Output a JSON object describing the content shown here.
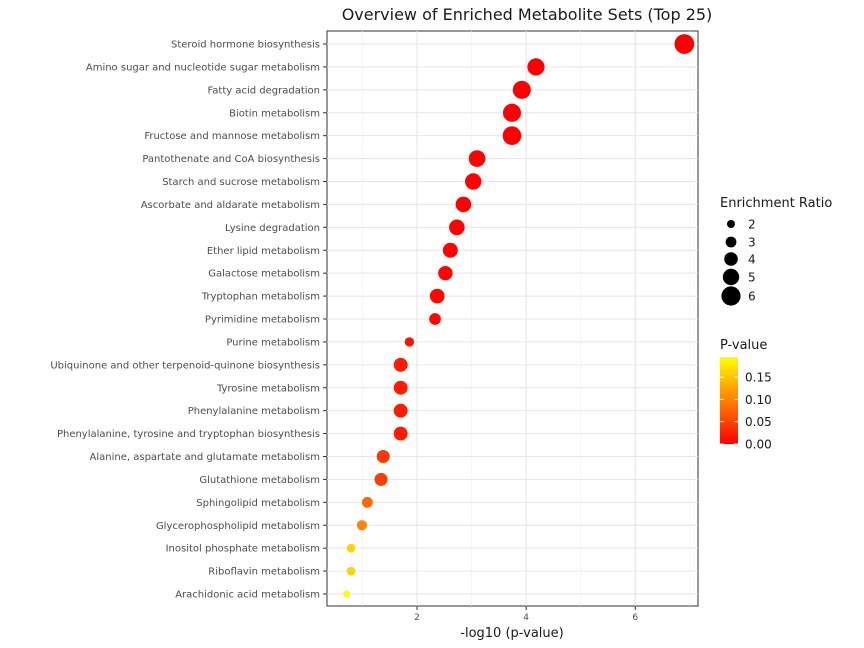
{
  "chart_data": {
    "type": "scatter",
    "title": "Overview of Enriched Metabolite Sets (Top 25)",
    "xlabel": "-log10 (p-value)",
    "ylabel": "",
    "xlim": [
      0.35,
      7.15
    ],
    "xticks": [
      2,
      4,
      6
    ],
    "grid": true,
    "categories": [
      "Steroid hormone biosynthesis",
      "Amino sugar and nucleotide sugar metabolism",
      "Fatty acid degradation",
      "Biotin metabolism",
      "Fructose and mannose metabolism",
      "Pantothenate and CoA biosynthesis",
      "Starch and sucrose metabolism",
      "Ascorbate and aldarate metabolism",
      "Lysine degradation",
      "Ether lipid metabolism",
      "Galactose metabolism",
      "Tryptophan metabolism",
      "Pyrimidine metabolism",
      "Purine metabolism",
      "Ubiquinone and other terpenoid-quinone biosynthesis",
      "Tyrosine metabolism",
      "Phenylalanine metabolism",
      "Phenylalanine, tyrosine and tryptophan biosynthesis",
      "Alanine, aspartate and glutamate metabolism",
      "Glutathione metabolism",
      "Sphingolipid metabolism",
      "Glycerophospholipid metabolism",
      "Inositol phosphate metabolism",
      "Riboflavin metabolism",
      "Arachidonic acid metabolism"
    ],
    "neg_log10_p": [
      6.9,
      4.18,
      3.92,
      3.74,
      3.74,
      3.1,
      3.03,
      2.85,
      2.73,
      2.61,
      2.52,
      2.37,
      2.33,
      1.86,
      1.7,
      1.7,
      1.7,
      1.7,
      1.38,
      1.34,
      1.09,
      0.99,
      0.79,
      0.79,
      0.71
    ],
    "p_value": [
      0.0,
      0.0001,
      0.0001,
      0.0002,
      0.0002,
      0.0008,
      0.0009,
      0.0014,
      0.0019,
      0.0025,
      0.003,
      0.0043,
      0.0047,
      0.014,
      0.02,
      0.02,
      0.02,
      0.02,
      0.042,
      0.046,
      0.081,
      0.102,
      0.162,
      0.162,
      0.195
    ],
    "enrichment_ratio": [
      6.2,
      5.3,
      5.6,
      5.6,
      5.8,
      5.1,
      5.0,
      4.7,
      4.7,
      4.5,
      4.3,
      4.4,
      3.3,
      2.5,
      4.1,
      4.1,
      4.1,
      4.1,
      3.8,
      3.8,
      3.0,
      2.8,
      2.2,
      2.2,
      1.7
    ],
    "legend_size": {
      "title": "Enrichment Ratio",
      "labels": [
        "2",
        "3",
        "4",
        "5",
        "6"
      ],
      "values": [
        2,
        3,
        4,
        5,
        6
      ]
    },
    "legend_color": {
      "title": "P-value",
      "labels": [
        "0.15",
        "0.10",
        "0.05",
        "0.00"
      ],
      "values": [
        0.15,
        0.1,
        0.05,
        0.0
      ],
      "range": [
        0.0,
        0.195
      ],
      "color_low": "#ff0000",
      "color_high": "#ffff00"
    }
  }
}
